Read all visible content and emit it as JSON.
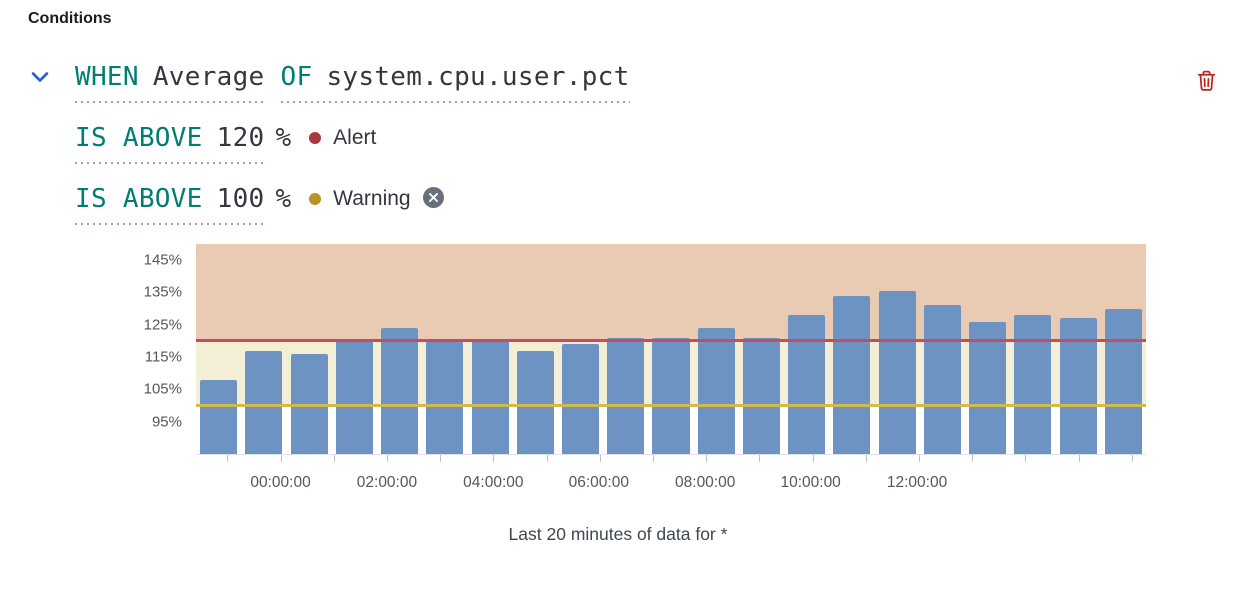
{
  "colors": {
    "keyword_teal": "#017D73",
    "text_dark": "#343741",
    "chevron_blue": "#2a5bd7",
    "alert_red": "#a8373f",
    "alert_line": "#c14f63",
    "warning_gold": "#b99322",
    "warning_line": "#d2ba4c",
    "zone_alert": "#e8cbb2",
    "zone_warning": "#f3efd7",
    "bar_blue": "#6d93c3",
    "trash_red": "#BD271E",
    "remove_gray": "#69707D",
    "axis_text": "#515761",
    "underline_gray": "#98A2B3"
  },
  "section": {
    "title": "Conditions"
  },
  "condition": {
    "when": {
      "keyword": "WHEN",
      "value": "Average"
    },
    "of": {
      "keyword": "OF",
      "value": "system.cpu.user.pct"
    },
    "thresholds": [
      {
        "keyword": "IS ABOVE",
        "value": "120",
        "unit": "%",
        "label": "Alert"
      },
      {
        "keyword": "IS ABOVE",
        "value": "100",
        "unit": "%",
        "label": "Warning"
      }
    ]
  },
  "chart_data": {
    "type": "bar",
    "title": "",
    "xlabel": "",
    "ylabel": "",
    "values": [
      108,
      117,
      116,
      120,
      124,
      120,
      120,
      117,
      119,
      121,
      121,
      124,
      121,
      128,
      134,
      135.5,
      131,
      126,
      128,
      127,
      130
    ],
    "ylim": [
      85,
      150
    ],
    "y_tick_values": [
      145,
      135,
      125,
      115,
      105,
      95
    ],
    "y_tick_labels": [
      "145%",
      "135%",
      "125%",
      "115%",
      "105%",
      "95%"
    ],
    "x_tick_labels": [
      "00:00:00",
      "02:00:00",
      "04:00:00",
      "06:00:00",
      "08:00:00",
      "10:00:00",
      "12:00:00"
    ],
    "x_tick_pos": [
      0.089,
      0.201,
      0.313,
      0.424,
      0.536,
      0.647,
      0.759
    ],
    "thresholds": [
      {
        "value": 120,
        "severity": "Alert"
      },
      {
        "value": 100,
        "severity": "Warning"
      }
    ],
    "grid": "off",
    "legend": "off",
    "caption": "Last 20 minutes of data for *"
  }
}
